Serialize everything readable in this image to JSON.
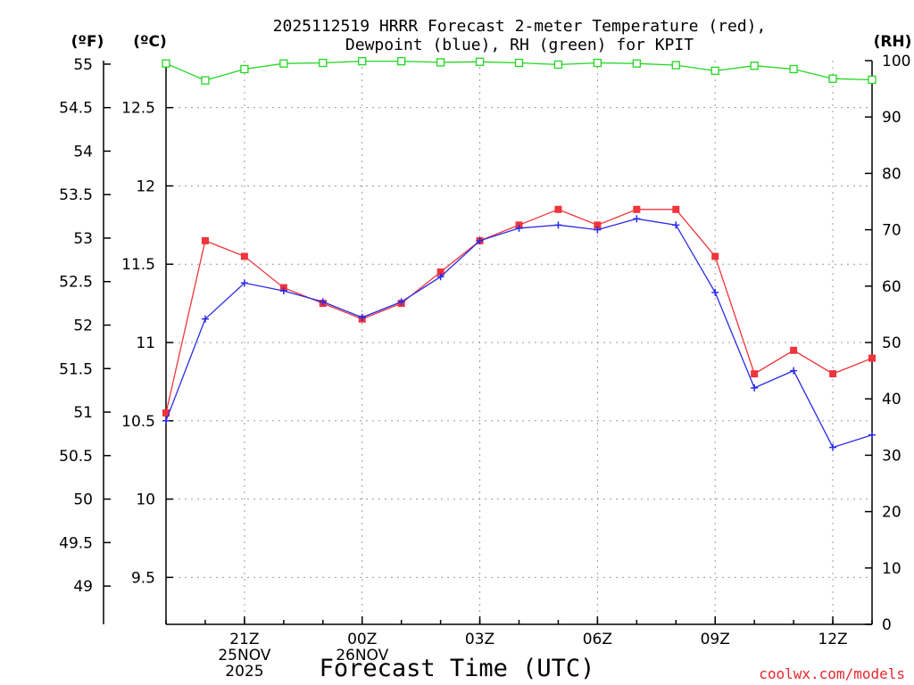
{
  "chart_data": {
    "type": "line",
    "title": {
      "line1": "2025112519 HRRR Forecast 2-meter Temperature (red),",
      "line2": "Dewpoint (blue), RH (green) for KPIT"
    },
    "xlabel": "Forecast Time (UTC)",
    "credit": "coolwx.com/models",
    "units": {
      "fahrenheit": "(ºF)",
      "celsius": "(ºC)",
      "rh": "(RH)"
    },
    "x_hours_utc": [
      "19Z",
      "20Z",
      "21Z",
      "22Z",
      "23Z",
      "00Z",
      "01Z",
      "02Z",
      "03Z",
      "04Z",
      "05Z",
      "06Z",
      "07Z",
      "08Z",
      "09Z",
      "10Z",
      "11Z",
      "12Z",
      "13Z"
    ],
    "x_ticks": [
      {
        "index": 2,
        "lines": [
          "21Z",
          "25NOV",
          "2025"
        ]
      },
      {
        "index": 5,
        "lines": [
          "00Z",
          "26NOV"
        ]
      },
      {
        "index": 8,
        "lines": [
          "03Z"
        ]
      },
      {
        "index": 11,
        "lines": [
          "06Z"
        ]
      },
      {
        "index": 14,
        "lines": [
          "09Z"
        ]
      },
      {
        "index": 17,
        "lines": [
          "12Z"
        ]
      }
    ],
    "y_celsius_range": [
      9.2,
      12.8
    ],
    "y_celsius_ticks": [
      "9.5",
      "10",
      "10.5",
      "11",
      "11.5",
      "12",
      "12.5"
    ],
    "y_fahrenheit_ticks": [
      "49",
      "49.5",
      "50",
      "50.5",
      "51",
      "51.5",
      "52",
      "52.5",
      "53",
      "53.5",
      "54",
      "54.5",
      "55"
    ],
    "y_rh_range": [
      0,
      100
    ],
    "y_rh_ticks": [
      "0",
      "10",
      "20",
      "30",
      "40",
      "50",
      "60",
      "70",
      "80",
      "90",
      "100"
    ],
    "grid": true,
    "series": [
      {
        "name": "Temperature",
        "color": "#f0343c",
        "marker": "filled-square",
        "values": [
          10.55,
          11.65,
          11.55,
          11.35,
          11.25,
          11.15,
          11.25,
          11.45,
          11.65,
          11.75,
          11.85,
          11.75,
          11.85,
          11.85,
          11.55,
          10.8,
          10.95,
          10.8,
          10.9
        ]
      },
      {
        "name": "Dewpoint",
        "color": "#2a2ae6",
        "marker": "plus",
        "values": [
          10.5,
          11.15,
          11.38,
          11.33,
          11.26,
          11.16,
          11.26,
          11.42,
          11.65,
          11.73,
          11.75,
          11.72,
          11.79,
          11.75,
          11.32,
          10.71,
          10.82,
          10.33,
          10.41
        ]
      },
      {
        "name": "RH",
        "color": "#22d622",
        "marker": "open-square",
        "values": [
          99.5,
          96.5,
          98.5,
          99.5,
          99.6,
          99.9,
          99.9,
          99.7,
          99.8,
          99.6,
          99.3,
          99.6,
          99.5,
          99.2,
          98.2,
          99.1,
          98.5,
          96.8,
          96.6
        ]
      }
    ]
  }
}
